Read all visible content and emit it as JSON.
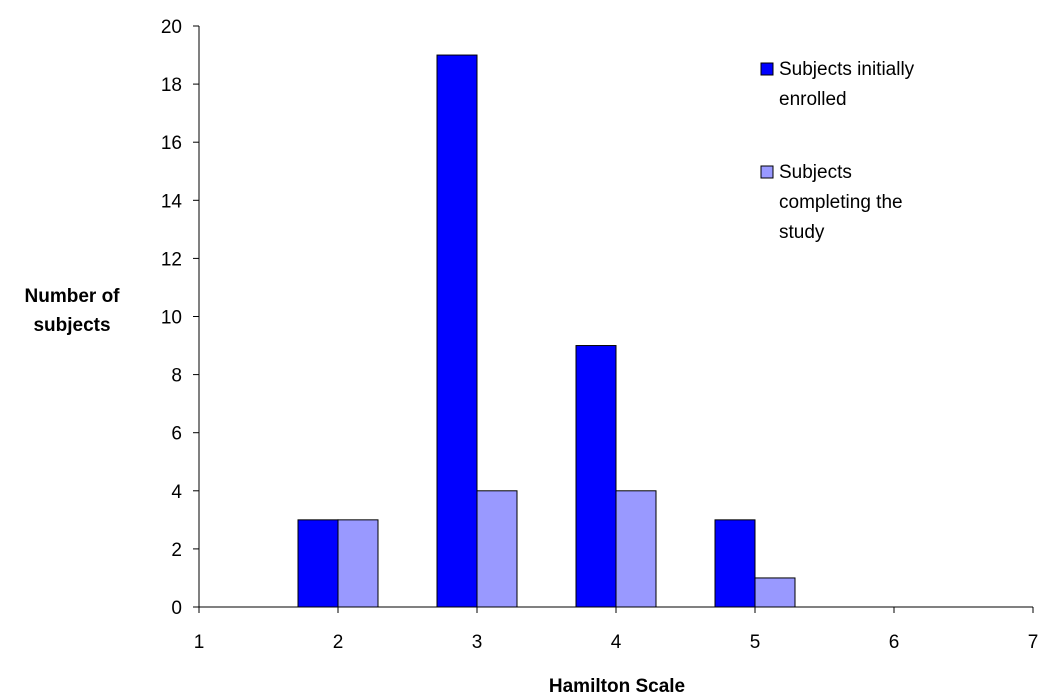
{
  "chart_data": {
    "type": "bar",
    "x": [
      2,
      3,
      4,
      5
    ],
    "series": [
      {
        "name": "Subjects initially enrolled",
        "values": [
          3,
          19,
          9,
          3
        ],
        "color": "#0000FF"
      },
      {
        "name": "Subjects completing the study",
        "values": [
          3,
          4,
          4,
          1
        ],
        "color": "#9999FF"
      }
    ],
    "xlabel": "Hamilton Scale",
    "ylabel": "Number of subjects",
    "xlim": [
      1,
      7
    ],
    "ylim": [
      0,
      20
    ],
    "xticks": [
      "1",
      "2",
      "3",
      "4",
      "5",
      "6",
      "7"
    ],
    "yticks": [
      "0",
      "2",
      "4",
      "6",
      "8",
      "10",
      "12",
      "14",
      "16",
      "18",
      "20"
    ],
    "grid": false,
    "legend_position": "top-right"
  },
  "legend": {
    "items": [
      {
        "lines": [
          "Subjects initially",
          "enrolled"
        ]
      },
      {
        "lines": [
          "Subjects",
          "completing the",
          "study"
        ]
      }
    ]
  },
  "axis_titles": {
    "x": "Hamilton Scale",
    "y_lines": [
      "Number of",
      "subjects"
    ]
  }
}
